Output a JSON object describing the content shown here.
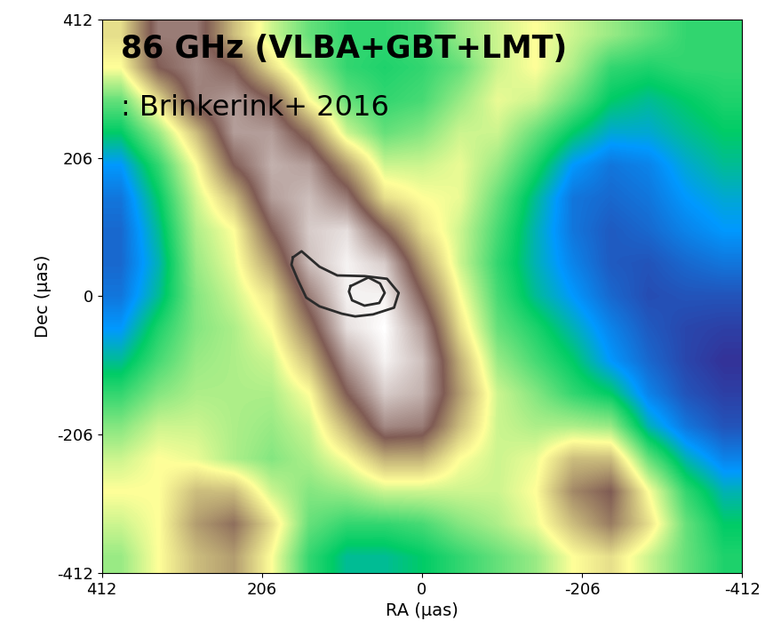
{
  "chart_data": {
    "type": "heatmap",
    "annotations": [
      "86 GHz (VLBA+GBT+LMT)",
      ": Brinkerink+ 2016"
    ],
    "x_label": "RA (μas)",
    "y_label": "Dec (μas)",
    "xlim": [
      412,
      -412
    ],
    "ylim": [
      -412,
      412
    ],
    "xticks": [
      412,
      206,
      0,
      -206,
      -412
    ],
    "yticks": [
      -412,
      -206,
      0,
      206,
      412
    ],
    "cells": [
      [
        0.55,
        0.8,
        0.8,
        0.6,
        0.45,
        0.35,
        0.3,
        0.3,
        0.32,
        0.4,
        0.45,
        0.5,
        0.45,
        0.4,
        0.35,
        0.3,
        0.3
      ],
      [
        0.5,
        0.75,
        0.82,
        0.75,
        0.55,
        0.4,
        0.3,
        0.28,
        0.3,
        0.35,
        0.45,
        0.5,
        0.42,
        0.3,
        0.28,
        0.3,
        0.3
      ],
      [
        0.35,
        0.55,
        0.8,
        0.85,
        0.75,
        0.5,
        0.35,
        0.3,
        0.32,
        0.4,
        0.48,
        0.45,
        0.35,
        0.25,
        0.22,
        0.25,
        0.28
      ],
      [
        0.25,
        0.4,
        0.6,
        0.85,
        0.85,
        0.7,
        0.45,
        0.35,
        0.38,
        0.45,
        0.45,
        0.35,
        0.25,
        0.18,
        0.18,
        0.22,
        0.25
      ],
      [
        0.15,
        0.3,
        0.5,
        0.75,
        0.88,
        0.85,
        0.65,
        0.45,
        0.45,
        0.48,
        0.4,
        0.28,
        0.15,
        0.1,
        0.12,
        0.18,
        0.22
      ],
      [
        0.1,
        0.25,
        0.45,
        0.6,
        0.85,
        0.9,
        0.8,
        0.55,
        0.5,
        0.48,
        0.35,
        0.22,
        0.1,
        0.08,
        0.1,
        0.15,
        0.18
      ],
      [
        0.08,
        0.22,
        0.42,
        0.5,
        0.75,
        0.92,
        0.95,
        0.75,
        0.55,
        0.45,
        0.32,
        0.2,
        0.1,
        0.06,
        0.08,
        0.12,
        0.15
      ],
      [
        0.08,
        0.2,
        0.4,
        0.48,
        0.65,
        0.9,
        0.98,
        0.92,
        0.65,
        0.45,
        0.3,
        0.2,
        0.12,
        0.06,
        0.05,
        0.08,
        0.1
      ],
      [
        0.1,
        0.22,
        0.38,
        0.45,
        0.55,
        0.8,
        0.98,
        0.98,
        0.75,
        0.5,
        0.32,
        0.22,
        0.15,
        0.08,
        0.04,
        0.05,
        0.05
      ],
      [
        0.15,
        0.28,
        0.38,
        0.42,
        0.5,
        0.7,
        0.95,
        1.0,
        0.85,
        0.55,
        0.35,
        0.28,
        0.2,
        0.12,
        0.06,
        0.03,
        0.02
      ],
      [
        0.22,
        0.32,
        0.4,
        0.42,
        0.45,
        0.6,
        0.85,
        0.98,
        0.9,
        0.62,
        0.4,
        0.32,
        0.25,
        0.15,
        0.08,
        0.03,
        0.0
      ],
      [
        0.3,
        0.38,
        0.42,
        0.42,
        0.42,
        0.5,
        0.75,
        0.92,
        0.88,
        0.65,
        0.45,
        0.38,
        0.3,
        0.25,
        0.12,
        0.05,
        0.02
      ],
      [
        0.38,
        0.45,
        0.45,
        0.42,
        0.4,
        0.45,
        0.62,
        0.82,
        0.8,
        0.6,
        0.45,
        0.42,
        0.42,
        0.4,
        0.2,
        0.1,
        0.05
      ],
      [
        0.45,
        0.5,
        0.48,
        0.42,
        0.38,
        0.42,
        0.5,
        0.62,
        0.62,
        0.5,
        0.45,
        0.48,
        0.6,
        0.6,
        0.35,
        0.2,
        0.12
      ],
      [
        0.5,
        0.5,
        0.6,
        0.6,
        0.45,
        0.38,
        0.4,
        0.45,
        0.45,
        0.45,
        0.45,
        0.5,
        0.68,
        0.75,
        0.5,
        0.3,
        0.2
      ],
      [
        0.45,
        0.5,
        0.65,
        0.72,
        0.55,
        0.35,
        0.3,
        0.3,
        0.32,
        0.38,
        0.42,
        0.48,
        0.6,
        0.7,
        0.55,
        0.35,
        0.25
      ],
      [
        0.4,
        0.5,
        0.6,
        0.65,
        0.5,
        0.3,
        0.22,
        0.22,
        0.25,
        0.3,
        0.35,
        0.4,
        0.5,
        0.55,
        0.45,
        0.35,
        0.28
      ]
    ],
    "contours": [
      [
        [
          166,
          58
        ],
        [
          155,
          67
        ],
        [
          132,
          44
        ],
        [
          109,
          31
        ],
        [
          74,
          30
        ],
        [
          45,
          26
        ],
        [
          30,
          5
        ],
        [
          36,
          -17
        ],
        [
          63,
          -27
        ],
        [
          86,
          -30
        ],
        [
          103,
          -26
        ],
        [
          132,
          -15
        ],
        [
          149,
          -2
        ],
        [
          160,
          25
        ],
        [
          168,
          47
        ],
        [
          166,
          58
        ]
      ],
      [
        [
          92,
          15
        ],
        [
          69,
          28
        ],
        [
          54,
          19
        ],
        [
          48,
          5
        ],
        [
          55,
          -10
        ],
        [
          74,
          -14
        ],
        [
          90,
          -6
        ],
        [
          94,
          7
        ],
        [
          92,
          15
        ]
      ]
    ]
  }
}
